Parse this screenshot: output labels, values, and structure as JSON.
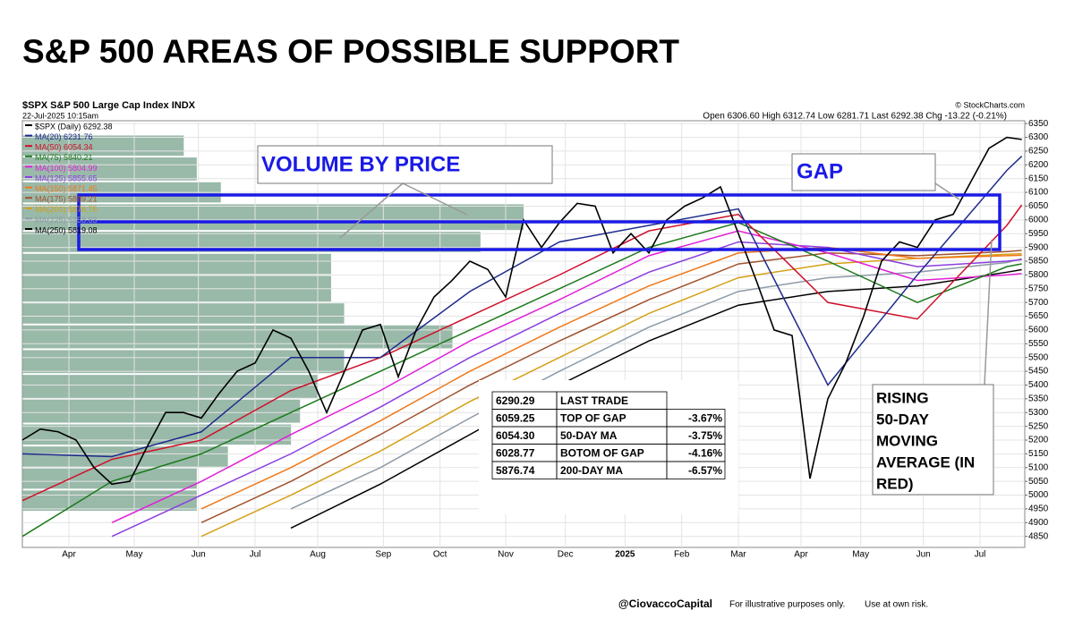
{
  "chart_data": {
    "type": "line",
    "title": "S&P 500 AREAS OF POSSIBLE SUPPORT",
    "symbol_line": "$SPX S&P 500 Large Cap Index INDX",
    "timestamp": "22-Jul-2025 10:15am",
    "source": "© StockCharts.com",
    "quote_line": "Open 6306.60  High 6312.74  Low 6281.71  Last 6292.38  Chg -13.22 (-0.21%)",
    "xlim": [
      0,
      336
    ],
    "xticks": [
      {
        "value": 15.6,
        "label": "Apr"
      },
      {
        "value": 37.5,
        "label": "May"
      },
      {
        "value": 59,
        "label": "Jun"
      },
      {
        "value": 78,
        "label": "Jul"
      },
      {
        "value": 99,
        "label": "Aug"
      },
      {
        "value": 121,
        "label": "Sep"
      },
      {
        "value": 140,
        "label": "Oct"
      },
      {
        "value": 162,
        "label": "Nov"
      },
      {
        "value": 182,
        "label": "Dec"
      },
      {
        "value": 202,
        "label": "2025"
      },
      {
        "value": 221,
        "label": "Feb"
      },
      {
        "value": 240,
        "label": "Mar"
      },
      {
        "value": 261,
        "label": "Apr"
      },
      {
        "value": 281,
        "label": "May"
      },
      {
        "value": 302,
        "label": "Jun"
      },
      {
        "value": 321,
        "label": "Jul"
      }
    ],
    "ylim": [
      4810,
      6370
    ],
    "yticks": [
      4850,
      4900,
      4950,
      5000,
      5050,
      5100,
      5150,
      5200,
      5250,
      5300,
      5350,
      5400,
      5450,
      5500,
      5550,
      5600,
      5650,
      5700,
      5750,
      5800,
      5850,
      5900,
      5950,
      6000,
      6050,
      6100,
      6150,
      6200,
      6250,
      6300,
      6350
    ],
    "grid": true,
    "series": [
      {
        "name": "$SPX (Daily) 6292.38",
        "color": "#000000",
        "x": [
          0,
          6,
          12,
          18,
          24,
          30,
          36,
          42,
          48,
          54,
          60,
          66,
          72,
          78,
          84,
          90,
          96,
          102,
          108,
          114,
          120,
          126,
          132,
          138,
          144,
          150,
          156,
          162,
          168,
          174,
          180,
          186,
          192,
          198,
          204,
          210,
          216,
          222,
          228,
          234,
          240,
          246,
          252,
          258,
          264,
          270,
          276,
          282,
          288,
          294,
          300,
          306,
          312,
          318,
          324,
          330,
          335
        ],
        "values": [
          5200,
          5240,
          5230,
          5200,
          5100,
          5040,
          5050,
          5180,
          5300,
          5300,
          5280,
          5370,
          5450,
          5480,
          5600,
          5570,
          5450,
          5300,
          5450,
          5600,
          5620,
          5430,
          5600,
          5720,
          5780,
          5850,
          5820,
          5720,
          6000,
          5900,
          5990,
          6060,
          6050,
          5880,
          5950,
          5880,
          6000,
          6050,
          6080,
          6120,
          5950,
          5780,
          5600,
          5580,
          5060,
          5350,
          5480,
          5650,
          5850,
          5920,
          5900,
          6000,
          6020,
          6140,
          6260,
          6300,
          6292.38
        ]
      },
      {
        "name": "MA(20) 6231.76",
        "color": "#1f2b8c",
        "x": [
          0,
          30,
          60,
          90,
          120,
          150,
          180,
          210,
          240,
          270,
          300,
          330,
          335
        ],
        "values": [
          5150,
          5140,
          5230,
          5500,
          5500,
          5740,
          5920,
          5980,
          6040,
          5400,
          5800,
          6180,
          6231.76
        ]
      },
      {
        "name": "MA(50) 6054.34",
        "color": "#d0102a",
        "x": [
          0,
          30,
          60,
          90,
          120,
          150,
          180,
          210,
          240,
          270,
          300,
          330,
          335
        ],
        "values": [
          4980,
          5130,
          5200,
          5380,
          5500,
          5650,
          5800,
          5960,
          6020,
          5700,
          5640,
          5980,
          6054.34
        ]
      },
      {
        "name": "MA(75) 5840.21",
        "color": "#1d7a1d",
        "x": [
          0,
          30,
          60,
          90,
          120,
          150,
          180,
          210,
          240,
          270,
          300,
          330,
          335
        ],
        "values": [
          4850,
          5050,
          5150,
          5300,
          5450,
          5600,
          5750,
          5900,
          5990,
          5850,
          5700,
          5830,
          5840.21
        ]
      },
      {
        "name": "MA(100) 5804.99",
        "color": "#e020d8",
        "x": [
          0,
          30,
          60,
          90,
          120,
          150,
          180,
          210,
          240,
          270,
          300,
          330,
          335
        ],
        "values": [
          null,
          4900,
          5050,
          5220,
          5380,
          5560,
          5710,
          5870,
          5960,
          5880,
          5780,
          5800,
          5804.99
        ]
      },
      {
        "name": "MA(125) 5855.65",
        "color": "#8a3ee0",
        "x": [
          0,
          30,
          60,
          90,
          120,
          150,
          180,
          210,
          240,
          270,
          300,
          330,
          335
        ],
        "values": [
          null,
          4850,
          5000,
          5150,
          5320,
          5500,
          5660,
          5810,
          5920,
          5900,
          5830,
          5850,
          5855.65
        ]
      },
      {
        "name": "MA(150) 5871.45",
        "color": "#f07818",
        "x": [
          0,
          30,
          60,
          90,
          120,
          150,
          180,
          210,
          240,
          270,
          300,
          330,
          335
        ],
        "values": [
          null,
          null,
          4950,
          5100,
          5270,
          5450,
          5610,
          5760,
          5880,
          5900,
          5860,
          5870,
          5871.45
        ]
      },
      {
        "name": "MA(175) 5889.21",
        "color": "#a0522d",
        "x": [
          0,
          30,
          60,
          90,
          120,
          150,
          180,
          210,
          240,
          270,
          300,
          330,
          335
        ],
        "values": [
          null,
          null,
          4900,
          5050,
          5220,
          5400,
          5560,
          5710,
          5840,
          5880,
          5870,
          5885,
          5889.21
        ]
      },
      {
        "name": "MA(200) 5876.75",
        "color": "#d4a017",
        "x": [
          0,
          30,
          60,
          90,
          120,
          150,
          180,
          210,
          240,
          270,
          300,
          330,
          335
        ],
        "values": [
          null,
          null,
          4850,
          5000,
          5160,
          5340,
          5500,
          5660,
          5790,
          5840,
          5860,
          5875,
          5876.75
        ]
      },
      {
        "name": "MA(225) 5858.63",
        "color": "#8c9aa6",
        "x": [
          0,
          30,
          60,
          90,
          120,
          150,
          180,
          210,
          240,
          270,
          300,
          330,
          335
        ],
        "values": [
          null,
          null,
          null,
          4950,
          5100,
          5280,
          5450,
          5610,
          5740,
          5790,
          5810,
          5845,
          5858.63
        ]
      },
      {
        "name": "MA(250) 5819.08",
        "color": "#000000",
        "x": [
          0,
          30,
          60,
          90,
          120,
          150,
          180,
          210,
          240,
          270,
          300,
          330,
          335
        ],
        "values": [
          null,
          null,
          null,
          4880,
          5040,
          5220,
          5400,
          5560,
          5690,
          5740,
          5760,
          5810,
          5819.08
        ]
      }
    ],
    "volume_by_price": {
      "color": "#7fa893",
      "bins": [
        4940,
        5020,
        5100,
        5180,
        5260,
        5350,
        5440,
        5530,
        5620,
        5700,
        5800,
        5880,
        5960,
        6060,
        6140,
        6230,
        6310
      ],
      "values": [
        17.4,
        17.4,
        20.5,
        26.8,
        27.7,
        29.5,
        32.1,
        42.9,
        32.1,
        30.8,
        30.8,
        45.7,
        50,
        19.8,
        17.4,
        16.1
      ]
    },
    "annotations": {
      "volume": "VOLUME BY PRICE",
      "gap": "GAP",
      "rising": [
        "RISING",
        "50-DAY",
        "MOVING",
        "AVERAGE (IN",
        "RED)"
      ]
    },
    "table": {
      "rows": [
        [
          "6290.29",
          "LAST TRADE",
          ""
        ],
        [
          "6059.25",
          "TOP OF GAP",
          "-3.67%"
        ],
        [
          "6054.30",
          "50-DAY MA",
          "-3.75%"
        ],
        [
          "6028.77",
          "BOTOM OF GAP",
          "-4.16%"
        ],
        [
          "5876.74",
          "200-DAY MA",
          "-6.57%"
        ]
      ]
    },
    "footer": {
      "handle": "@CiovaccoCapital",
      "note1": "For illustrative purposes only.",
      "note2": "Use at own risk."
    }
  }
}
